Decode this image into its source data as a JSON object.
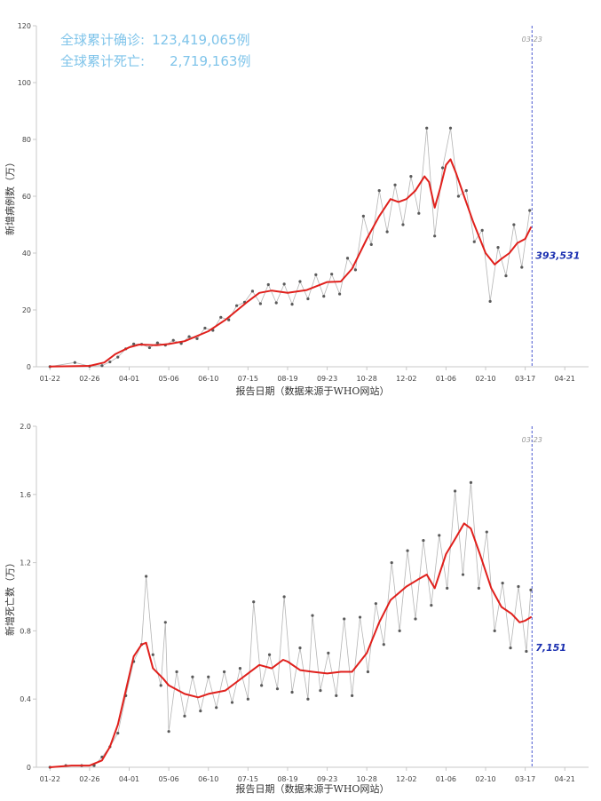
{
  "summary": {
    "confirmed_label": "全球累计确诊:",
    "confirmed_value": "123,419,065例",
    "deaths_label": "全球累计死亡:",
    "deaths_value": "2,719,163例"
  },
  "colors": {
    "trend": "#e0201c",
    "points": "#5a5a5a",
    "raw_line": "#b4b4b4",
    "axis": "#c8c8c8",
    "summary_text": "#7fc4ea",
    "marker": "#3344cc",
    "marker_label": "#1a2fb0"
  },
  "chart_data": [
    {
      "type": "line",
      "ylabel": "新增病例数（万）",
      "xlabel": "报告日期（数据来源于WHO网站）",
      "xlim": [
        "2020-01-10",
        "2021-05-12"
      ],
      "ylim": [
        0,
        120
      ],
      "yticks": [
        0,
        20,
        40,
        60,
        80,
        100,
        120
      ],
      "xtick_labels": [
        "01-22",
        "02-26",
        "04-01",
        "05-06",
        "06-10",
        "07-15",
        "08-19",
        "09-23",
        "10-28",
        "12-02",
        "01-06",
        "02-10",
        "03-17",
        "04-21"
      ],
      "xtick_dates": [
        "2020-01-22",
        "2020-02-26",
        "2020-04-01",
        "2020-05-06",
        "2020-06-10",
        "2020-07-15",
        "2020-08-19",
        "2020-09-23",
        "2020-10-28",
        "2020-12-02",
        "2021-01-06",
        "2021-02-10",
        "2021-03-17",
        "2021-04-21"
      ],
      "marker_date": "2021-03-23",
      "marker_date_label": "03-23",
      "last_value_label": "393,531",
      "series": [
        {
          "role": "trend",
          "points": [
            [
              "2020-01-22",
              0.1
            ],
            [
              "2020-02-10",
              0.2
            ],
            [
              "2020-02-26",
              0.3
            ],
            [
              "2020-03-10",
              1.5
            ],
            [
              "2020-03-20",
              4.5
            ],
            [
              "2020-04-01",
              6.8
            ],
            [
              "2020-04-10",
              7.8
            ],
            [
              "2020-04-25",
              7.6
            ],
            [
              "2020-05-06",
              8.0
            ],
            [
              "2020-05-20",
              9.0
            ],
            [
              "2020-06-10",
              12.5
            ],
            [
              "2020-06-25",
              16.5
            ],
            [
              "2020-07-15",
              23.0
            ],
            [
              "2020-07-25",
              26.0
            ],
            [
              "2020-08-05",
              26.8
            ],
            [
              "2020-08-19",
              26.0
            ],
            [
              "2020-09-05",
              27.0
            ],
            [
              "2020-09-23",
              29.8
            ],
            [
              "2020-10-05",
              30.0
            ],
            [
              "2020-10-15",
              34.5
            ],
            [
              "2020-10-28",
              45.0
            ],
            [
              "2020-11-08",
              53.0
            ],
            [
              "2020-11-18",
              59.0
            ],
            [
              "2020-11-25",
              58.0
            ],
            [
              "2020-12-02",
              59.0
            ],
            [
              "2020-12-10",
              62.0
            ],
            [
              "2020-12-18",
              67.0
            ],
            [
              "2020-12-22",
              65.0
            ],
            [
              "2020-12-27",
              56.0
            ],
            [
              "2021-01-01",
              63.0
            ],
            [
              "2021-01-06",
              71.0
            ],
            [
              "2021-01-10",
              73.0
            ],
            [
              "2021-01-15",
              68.0
            ],
            [
              "2021-01-22",
              60.0
            ],
            [
              "2021-01-30",
              51.0
            ],
            [
              "2021-02-10",
              40.0
            ],
            [
              "2021-02-18",
              36.0
            ],
            [
              "2021-02-24",
              38.0
            ],
            [
              "2021-03-03",
              40.0
            ],
            [
              "2021-03-10",
              43.5
            ],
            [
              "2021-03-17",
              45.0
            ],
            [
              "2021-03-22",
              49.0
            ]
          ]
        },
        {
          "role": "daily",
          "note": "weekly sample of daily reported values",
          "points": [
            [
              "2020-01-22",
              0.05
            ],
            [
              "2020-02-13",
              1.5
            ],
            [
              "2020-02-26",
              0.2
            ],
            [
              "2020-03-08",
              0.4
            ],
            [
              "2020-03-15",
              1.7
            ],
            [
              "2020-03-22",
              3.4
            ],
            [
              "2020-03-29",
              6.3
            ],
            [
              "2020-04-05",
              8.0
            ],
            [
              "2020-04-12",
              7.9
            ],
            [
              "2020-04-19",
              6.7
            ],
            [
              "2020-04-26",
              8.4
            ],
            [
              "2020-05-03",
              7.6
            ],
            [
              "2020-05-10",
              9.3
            ],
            [
              "2020-05-17",
              8.2
            ],
            [
              "2020-05-24",
              10.6
            ],
            [
              "2020-05-31",
              9.9
            ],
            [
              "2020-06-07",
              13.6
            ],
            [
              "2020-06-14",
              12.8
            ],
            [
              "2020-06-21",
              17.4
            ],
            [
              "2020-06-28",
              16.5
            ],
            [
              "2020-07-05",
              21.5
            ],
            [
              "2020-07-12",
              22.7
            ],
            [
              "2020-07-19",
              26.6
            ],
            [
              "2020-07-26",
              22.2
            ],
            [
              "2020-08-02",
              28.9
            ],
            [
              "2020-08-09",
              22.5
            ],
            [
              "2020-08-16",
              29.1
            ],
            [
              "2020-08-23",
              22.0
            ],
            [
              "2020-08-30",
              30.0
            ],
            [
              "2020-09-06",
              23.9
            ],
            [
              "2020-09-13",
              32.4
            ],
            [
              "2020-09-20",
              24.8
            ],
            [
              "2020-09-27",
              32.6
            ],
            [
              "2020-10-04",
              25.6
            ],
            [
              "2020-10-11",
              38.2
            ],
            [
              "2020-10-18",
              34.1
            ],
            [
              "2020-10-25",
              53.0
            ],
            [
              "2020-11-01",
              43.0
            ],
            [
              "2020-11-08",
              62.0
            ],
            [
              "2020-11-15",
              47.5
            ],
            [
              "2020-11-22",
              64.0
            ],
            [
              "2020-11-29",
              50.0
            ],
            [
              "2020-12-06",
              67.0
            ],
            [
              "2020-12-13",
              54.0
            ],
            [
              "2020-12-20",
              84.0
            ],
            [
              "2020-12-27",
              46.0
            ],
            [
              "2021-01-03",
              70.0
            ],
            [
              "2021-01-10",
              84.0
            ],
            [
              "2021-01-17",
              60.0
            ],
            [
              "2021-01-24",
              62.0
            ],
            [
              "2021-01-31",
              44.0
            ],
            [
              "2021-02-07",
              48.0
            ],
            [
              "2021-02-14",
              23.0
            ],
            [
              "2021-02-21",
              42.0
            ],
            [
              "2021-02-28",
              32.0
            ],
            [
              "2021-03-07",
              50.0
            ],
            [
              "2021-03-14",
              35.0
            ],
            [
              "2021-03-21",
              55.0
            ]
          ]
        }
      ]
    },
    {
      "type": "line",
      "ylabel": "新增死亡数（万）",
      "xlabel": "报告日期（数据来源于WHO网站）",
      "xlim": [
        "2020-01-10",
        "2021-05-12"
      ],
      "ylim": [
        0,
        2.0
      ],
      "yticks": [
        0,
        0.4,
        0.8,
        1.2,
        1.6,
        2.0
      ],
      "ytick_labels": [
        "0",
        "0.4",
        "0.8",
        "1.2",
        "1.6",
        "2.0"
      ],
      "xtick_labels": [
        "01-22",
        "02-26",
        "04-01",
        "05-06",
        "06-10",
        "07-15",
        "08-19",
        "09-23",
        "10-28",
        "12-02",
        "01-06",
        "02-10",
        "03-17",
        "04-21"
      ],
      "xtick_dates": [
        "2020-01-22",
        "2020-02-26",
        "2020-04-01",
        "2020-05-06",
        "2020-06-10",
        "2020-07-15",
        "2020-08-19",
        "2020-09-23",
        "2020-10-28",
        "2020-12-02",
        "2021-01-06",
        "2021-02-10",
        "2021-03-17",
        "2021-04-21"
      ],
      "marker_date": "2021-03-23",
      "marker_date_label": "03-23",
      "last_value_label": "7,151",
      "series": [
        {
          "role": "trend",
          "points": [
            [
              "2020-01-22",
              0.0
            ],
            [
              "2020-02-10",
              0.01
            ],
            [
              "2020-02-26",
              0.01
            ],
            [
              "2020-03-08",
              0.04
            ],
            [
              "2020-03-15",
              0.12
            ],
            [
              "2020-03-22",
              0.25
            ],
            [
              "2020-03-29",
              0.45
            ],
            [
              "2020-04-05",
              0.65
            ],
            [
              "2020-04-12",
              0.72
            ],
            [
              "2020-04-16",
              0.73
            ],
            [
              "2020-04-22",
              0.58
            ],
            [
              "2020-05-01",
              0.52
            ],
            [
              "2020-05-06",
              0.48
            ],
            [
              "2020-05-20",
              0.43
            ],
            [
              "2020-06-01",
              0.41
            ],
            [
              "2020-06-10",
              0.43
            ],
            [
              "2020-06-25",
              0.45
            ],
            [
              "2020-07-05",
              0.5
            ],
            [
              "2020-07-15",
              0.55
            ],
            [
              "2020-07-25",
              0.6
            ],
            [
              "2020-08-05",
              0.58
            ],
            [
              "2020-08-15",
              0.63
            ],
            [
              "2020-08-19",
              0.62
            ],
            [
              "2020-08-30",
              0.57
            ],
            [
              "2020-09-10",
              0.56
            ],
            [
              "2020-09-23",
              0.55
            ],
            [
              "2020-10-05",
              0.56
            ],
            [
              "2020-10-15",
              0.56
            ],
            [
              "2020-10-28",
              0.67
            ],
            [
              "2020-11-08",
              0.85
            ],
            [
              "2020-11-18",
              0.98
            ],
            [
              "2020-12-02",
              1.06
            ],
            [
              "2020-12-12",
              1.1
            ],
            [
              "2020-12-20",
              1.13
            ],
            [
              "2020-12-27",
              1.05
            ],
            [
              "2021-01-06",
              1.25
            ],
            [
              "2021-01-15",
              1.35
            ],
            [
              "2021-01-22",
              1.43
            ],
            [
              "2021-01-28",
              1.4
            ],
            [
              "2021-02-05",
              1.25
            ],
            [
              "2021-02-15",
              1.05
            ],
            [
              "2021-02-24",
              0.94
            ],
            [
              "2021-03-05",
              0.9
            ],
            [
              "2021-03-12",
              0.85
            ],
            [
              "2021-03-17",
              0.86
            ],
            [
              "2021-03-22",
              0.88
            ]
          ]
        },
        {
          "role": "daily",
          "note": "weekly sample of daily reported values",
          "points": [
            [
              "2020-01-22",
              0.0
            ],
            [
              "2020-02-05",
              0.01
            ],
            [
              "2020-02-19",
              0.01
            ],
            [
              "2020-03-01",
              0.01
            ],
            [
              "2020-03-08",
              0.06
            ],
            [
              "2020-03-15",
              0.12
            ],
            [
              "2020-03-22",
              0.2
            ],
            [
              "2020-03-29",
              0.42
            ],
            [
              "2020-04-05",
              0.62
            ],
            [
              "2020-04-12",
              0.72
            ],
            [
              "2020-04-16",
              1.12
            ],
            [
              "2020-04-22",
              0.66
            ],
            [
              "2020-04-29",
              0.48
            ],
            [
              "2020-05-03",
              0.85
            ],
            [
              "2020-05-06",
              0.21
            ],
            [
              "2020-05-13",
              0.56
            ],
            [
              "2020-05-20",
              0.3
            ],
            [
              "2020-05-27",
              0.53
            ],
            [
              "2020-06-03",
              0.33
            ],
            [
              "2020-06-10",
              0.53
            ],
            [
              "2020-06-17",
              0.35
            ],
            [
              "2020-06-24",
              0.56
            ],
            [
              "2020-07-01",
              0.38
            ],
            [
              "2020-07-08",
              0.58
            ],
            [
              "2020-07-15",
              0.4
            ],
            [
              "2020-07-20",
              0.97
            ],
            [
              "2020-07-27",
              0.48
            ],
            [
              "2020-08-03",
              0.66
            ],
            [
              "2020-08-10",
              0.46
            ],
            [
              "2020-08-16",
              1.0
            ],
            [
              "2020-08-23",
              0.44
            ],
            [
              "2020-08-30",
              0.7
            ],
            [
              "2020-09-06",
              0.4
            ],
            [
              "2020-09-10",
              0.89
            ],
            [
              "2020-09-17",
              0.45
            ],
            [
              "2020-09-24",
              0.67
            ],
            [
              "2020-10-01",
              0.42
            ],
            [
              "2020-10-08",
              0.87
            ],
            [
              "2020-10-15",
              0.42
            ],
            [
              "2020-10-22",
              0.88
            ],
            [
              "2020-10-29",
              0.56
            ],
            [
              "2020-11-05",
              0.96
            ],
            [
              "2020-11-12",
              0.72
            ],
            [
              "2020-11-19",
              1.2
            ],
            [
              "2020-11-26",
              0.8
            ],
            [
              "2020-12-03",
              1.27
            ],
            [
              "2020-12-10",
              0.87
            ],
            [
              "2020-12-17",
              1.33
            ],
            [
              "2020-12-24",
              0.95
            ],
            [
              "2020-12-31",
              1.36
            ],
            [
              "2021-01-07",
              1.05
            ],
            [
              "2021-01-14",
              1.62
            ],
            [
              "2021-01-21",
              1.13
            ],
            [
              "2021-01-28",
              1.67
            ],
            [
              "2021-02-04",
              1.05
            ],
            [
              "2021-02-11",
              1.38
            ],
            [
              "2021-02-18",
              0.8
            ],
            [
              "2021-02-25",
              1.08
            ],
            [
              "2021-03-04",
              0.7
            ],
            [
              "2021-03-11",
              1.06
            ],
            [
              "2021-03-18",
              0.68
            ],
            [
              "2021-03-22",
              1.04
            ]
          ]
        }
      ]
    }
  ]
}
